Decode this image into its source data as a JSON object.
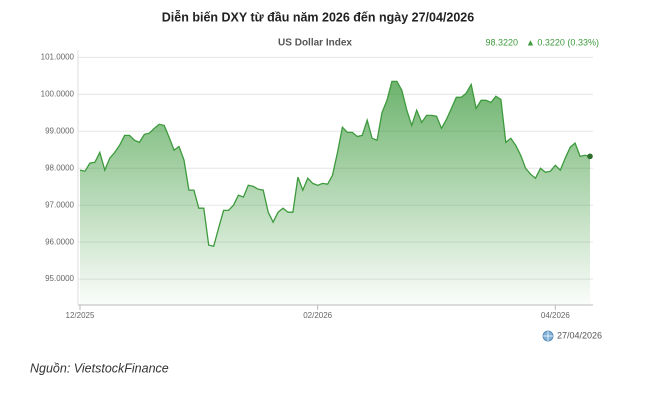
{
  "chart_data": {
    "type": "area",
    "title": "Diễn biến DXY từ đầu năm 2026 đến ngày 27/04/2026",
    "subtitle": "US Dollar Index",
    "last_value": "98.3220",
    "change": "▲ 0.3220 (0.33%)",
    "date": "27/04/2026",
    "source": "Nguồn: VietstockFinance",
    "color": "#3d9a3d",
    "grid": true,
    "categories": [
      "12/2025",
      null,
      null,
      null,
      null,
      null,
      null,
      null,
      null,
      null,
      null,
      null,
      null,
      null,
      null,
      null,
      null,
      null,
      null,
      null,
      null,
      null,
      null,
      null,
      null,
      null,
      null,
      null,
      null,
      null,
      null,
      null,
      null,
      null,
      null,
      null,
      null,
      null,
      null,
      null,
      null,
      null,
      null,
      null,
      null,
      null,
      null,
      null,
      "02/2026",
      null,
      null,
      null,
      null,
      null,
      null,
      null,
      null,
      null,
      null,
      null,
      null,
      null,
      null,
      null,
      null,
      null,
      null,
      null,
      null,
      null,
      null,
      null,
      null,
      null,
      null,
      null,
      null,
      null,
      null,
      null,
      null,
      null,
      null,
      null,
      null,
      null,
      null,
      null,
      null,
      null,
      null,
      null,
      null,
      null,
      null,
      null,
      "04/2026",
      null,
      null,
      null,
      null,
      null,
      null,
      null
    ],
    "values": [
      97.95,
      97.92,
      98.14,
      98.16,
      98.43,
      97.95,
      98.27,
      98.43,
      98.62,
      98.89,
      98.89,
      98.76,
      98.7,
      98.92,
      98.95,
      99.08,
      99.19,
      99.16,
      98.84,
      98.49,
      98.59,
      98.22,
      97.41,
      97.41,
      96.92,
      96.92,
      95.92,
      95.89,
      96.38,
      96.86,
      96.86,
      97.0,
      97.27,
      97.22,
      97.54,
      97.51,
      97.43,
      97.41,
      96.81,
      96.54,
      96.81,
      96.92,
      96.81,
      96.81,
      97.76,
      97.41,
      97.73,
      97.59,
      97.54,
      97.59,
      97.57,
      97.81,
      98.43,
      99.11,
      98.97,
      98.97,
      98.86,
      98.89,
      99.3,
      98.81,
      98.76,
      99.51,
      99.84,
      100.35,
      100.35,
      100.11,
      99.57,
      99.16,
      99.57,
      99.24,
      99.43,
      99.43,
      99.41,
      99.08,
      99.32,
      99.62,
      99.92,
      99.92,
      100.03,
      100.27,
      99.62,
      99.84,
      99.84,
      99.78,
      99.95,
      99.86,
      98.7,
      98.81,
      98.62,
      98.35,
      98.0,
      97.84,
      97.73,
      98.0,
      97.89,
      97.92,
      98.08,
      97.95,
      98.27,
      98.57,
      98.68,
      98.32,
      98.35,
      98.322
    ],
    "ylim": [
      94.3,
      101.2
    ],
    "yticks": [
      {
        "value": 95,
        "label": "95.0000"
      },
      {
        "value": 96,
        "label": "96.0000"
      },
      {
        "value": 97,
        "label": "97.0000"
      },
      {
        "value": 98,
        "label": "98.0000"
      },
      {
        "value": 99,
        "label": "99.0000"
      },
      {
        "value": 100,
        "label": "100.0000"
      },
      {
        "value": 101,
        "label": "101.0000"
      }
    ]
  }
}
